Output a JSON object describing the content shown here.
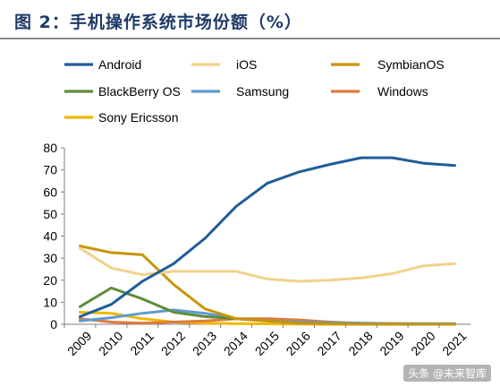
{
  "title": "图 2：手机操作系统市场份额（%）",
  "watermark": "头条 @未来智库",
  "chart_data": {
    "type": "line",
    "title": "图 2：手机操作系统市场份额（%）",
    "xlabel": "",
    "ylabel": "",
    "ylim": [
      0,
      80
    ],
    "yticks": [
      0,
      10,
      20,
      30,
      40,
      50,
      60,
      70,
      80
    ],
    "x": [
      "2009",
      "2010",
      "2011",
      "2012",
      "2013",
      "2014",
      "2015",
      "2016",
      "2017",
      "2018",
      "2019",
      "2020",
      "2021"
    ],
    "grid": false,
    "legend_position": "top",
    "series": [
      {
        "name": "Android",
        "color": "#1f5d99",
        "values": [
          3.5,
          9,
          19.5,
          27.5,
          39,
          53.5,
          64,
          69,
          72.5,
          75.5,
          75.5,
          73,
          72
        ]
      },
      {
        "name": "iOS",
        "color": "#f2d28a",
        "values": [
          34.5,
          25.5,
          22.5,
          24,
          24,
          24,
          20.5,
          19.5,
          20,
          21,
          23,
          26.5,
          27.5
        ]
      },
      {
        "name": "SymbianOS",
        "color": "#c9950a",
        "values": [
          35.5,
          32.5,
          31.5,
          18,
          7,
          2.5,
          1.5,
          0.5,
          0.2,
          0.1,
          0.1,
          0,
          0
        ]
      },
      {
        "name": "BlackBerry OS",
        "color": "#5f8c3a",
        "values": [
          8,
          16.5,
          11.5,
          5.5,
          3.5,
          2.5,
          1.5,
          0.5,
          0.3,
          0.1,
          0.1,
          0,
          0
        ]
      },
      {
        "name": "Samsung",
        "color": "#5f9bd0",
        "values": [
          1.5,
          3,
          5,
          6.5,
          5,
          2.5,
          1.5,
          1,
          0.7,
          0.5,
          0.3,
          0.3,
          0.3
        ]
      },
      {
        "name": "Windows",
        "color": "#e07b39",
        "values": [
          2.5,
          1,
          0.5,
          1,
          1.5,
          2.5,
          2.5,
          2,
          1,
          0.5,
          0.3,
          0.2,
          0.2
        ]
      },
      {
        "name": "Sony Ericsson",
        "color": "#f0b800",
        "values": [
          5.5,
          5,
          2.5,
          1,
          0.5,
          0.3,
          0.2,
          0.1,
          0,
          0,
          0,
          0,
          0
        ]
      }
    ]
  }
}
